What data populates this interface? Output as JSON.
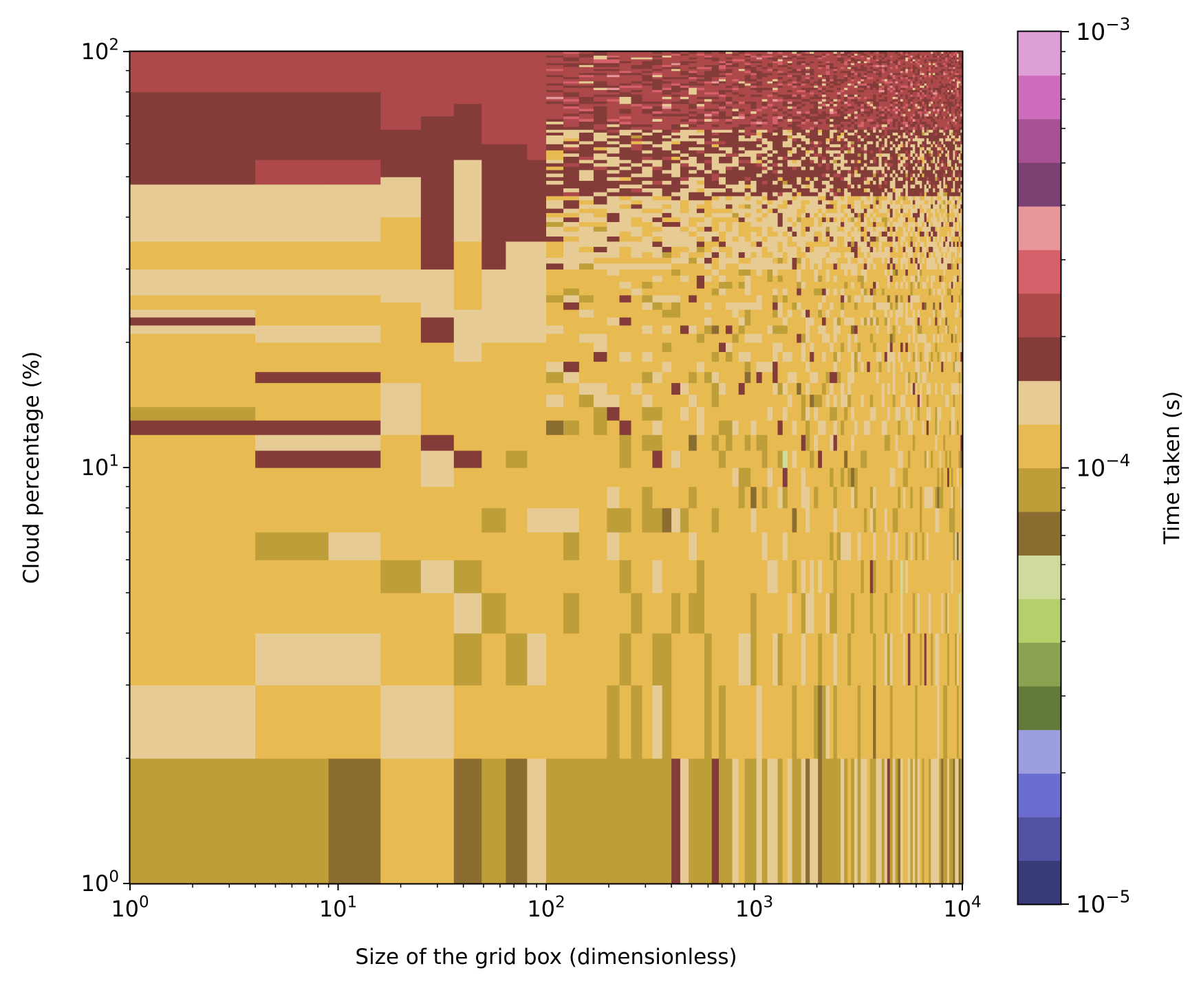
{
  "chart_data": {
    "type": "heatmap",
    "title": "",
    "xlabel": "Size of the grid box (dimensionless)",
    "ylabel": "Cloud percentage (%)",
    "x_scale": "log",
    "y_scale": "log",
    "xlim": [
      1,
      10000
    ],
    "ylim": [
      1,
      100
    ],
    "x_ticks": [
      {
        "value": 1,
        "base": "10",
        "exp": "0"
      },
      {
        "value": 10,
        "base": "10",
        "exp": "1"
      },
      {
        "value": 100,
        "base": "10",
        "exp": "2"
      },
      {
        "value": 1000,
        "base": "10",
        "exp": "3"
      },
      {
        "value": 10000,
        "base": "10",
        "exp": "4"
      }
    ],
    "y_ticks": [
      {
        "value": 1,
        "base": "10",
        "exp": "0"
      },
      {
        "value": 10,
        "base": "10",
        "exp": "1"
      },
      {
        "value": 100,
        "base": "10",
        "exp": "2"
      }
    ],
    "colorbar": {
      "label": "Time taken (s)",
      "scale": "log",
      "range": [
        1e-05,
        0.001
      ],
      "ticks": [
        {
          "value": 1e-05,
          "base": "10",
          "exp": "−5"
        },
        {
          "value": 0.0001,
          "base": "10",
          "exp": "−4"
        },
        {
          "value": 0.001,
          "base": "10",
          "exp": "−3"
        }
      ],
      "colors": [
        "#393b79",
        "#5254a3",
        "#6b6ecf",
        "#9c9ede",
        "#637939",
        "#8ca252",
        "#b5cf6b",
        "#cedb9c",
        "#8c6d31",
        "#bd9e39",
        "#e7ba52",
        "#e7cb94",
        "#843c39",
        "#ad494a",
        "#d6616b",
        "#e7969c",
        "#7b4173",
        "#a55194",
        "#ce6dbd",
        "#de9ed6"
      ]
    },
    "x_edges": [
      1,
      4,
      9,
      16,
      25,
      36,
      49,
      64,
      81,
      100,
      121,
      144,
      169,
      196,
      225,
      256,
      289,
      324,
      361,
      400,
      441,
      484,
      529,
      576,
      625,
      676,
      729,
      784,
      841,
      900,
      961,
      1024,
      1089,
      1156,
      1225,
      1296,
      1369,
      1444,
      1521,
      1600,
      1681,
      1764,
      1849,
      1936,
      2025,
      2116,
      2209,
      2304,
      2401,
      2500,
      2601,
      2704,
      2809,
      2916,
      3025,
      3136,
      3249,
      3364,
      3481,
      3600,
      3721,
      3844,
      3969,
      4096,
      4225,
      4356,
      4489,
      4624,
      4761,
      4900,
      5041,
      5184,
      5329,
      5476,
      5625,
      5776,
      5929,
      6084,
      6241,
      6400,
      6561,
      6724,
      6889,
      7056,
      7225,
      7396,
      7569,
      7744,
      7921,
      8100,
      8281,
      8464,
      8649,
      8836,
      9025,
      9216,
      9409,
      9604,
      9801,
      10000
    ],
    "y_edges": [
      1,
      2,
      3,
      4,
      5,
      6,
      7,
      8,
      9,
      10,
      11,
      12,
      13,
      14,
      15,
      16,
      17,
      18,
      19,
      20,
      21,
      22,
      23,
      24,
      25,
      26,
      27,
      28,
      29,
      30,
      31,
      32,
      33,
      34,
      35,
      36,
      37,
      38,
      39,
      40,
      41,
      42,
      43,
      44,
      45,
      46,
      47,
      48,
      49,
      50,
      51,
      52,
      53,
      54,
      55,
      56,
      57,
      58,
      59,
      60,
      61,
      62,
      63,
      64,
      65,
      66,
      67,
      68,
      69,
      70,
      71,
      72,
      73,
      74,
      75,
      76,
      77,
      78,
      79,
      80,
      81,
      82,
      83,
      84,
      85,
      86,
      87,
      88,
      89,
      90,
      91,
      92,
      93,
      94,
      95,
      96,
      97,
      98,
      99,
      100
    ],
    "col_groups": [
      {
        "x_from": 1,
        "x_to": 4,
        "bands": [
          [
            1,
            2,
            9
          ],
          [
            2,
            3,
            11
          ],
          [
            3,
            12,
            10
          ],
          [
            12,
            13,
            12
          ],
          [
            13,
            14,
            9
          ],
          [
            14,
            16,
            10
          ],
          [
            16,
            21,
            10
          ],
          [
            21,
            22,
            11
          ],
          [
            22,
            23,
            12
          ],
          [
            23,
            24,
            11
          ],
          [
            24,
            26,
            10
          ],
          [
            26,
            30,
            11
          ],
          [
            30,
            35,
            10
          ],
          [
            35,
            48,
            11
          ],
          [
            48,
            80,
            12
          ],
          [
            80,
            100,
            13
          ]
        ]
      },
      {
        "x_from": 4,
        "x_to": 9,
        "bands": [
          [
            1,
            2,
            9
          ],
          [
            2,
            3,
            10
          ],
          [
            3,
            4,
            11
          ],
          [
            4,
            6,
            10
          ],
          [
            6,
            7,
            9
          ],
          [
            7,
            10,
            10
          ],
          [
            10,
            11,
            12
          ],
          [
            11,
            12,
            11
          ],
          [
            12,
            13,
            12
          ],
          [
            13,
            16,
            10
          ],
          [
            16,
            17,
            12
          ],
          [
            17,
            20,
            10
          ],
          [
            20,
            22,
            11
          ],
          [
            22,
            26,
            10
          ],
          [
            26,
            30,
            11
          ],
          [
            30,
            35,
            10
          ],
          [
            35,
            48,
            11
          ],
          [
            48,
            55,
            13
          ],
          [
            55,
            65,
            12
          ],
          [
            65,
            80,
            12
          ],
          [
            80,
            100,
            13
          ]
        ]
      },
      {
        "x_from": 9,
        "x_to": 16,
        "bands": [
          [
            1,
            2,
            8
          ],
          [
            2,
            3,
            10
          ],
          [
            3,
            4,
            11
          ],
          [
            4,
            6,
            10
          ],
          [
            6,
            7,
            11
          ],
          [
            7,
            10,
            10
          ],
          [
            10,
            11,
            12
          ],
          [
            11,
            12,
            11
          ],
          [
            12,
            13,
            12
          ],
          [
            13,
            16,
            10
          ],
          [
            16,
            17,
            12
          ],
          [
            17,
            20,
            10
          ],
          [
            20,
            22,
            11
          ],
          [
            22,
            26,
            10
          ],
          [
            26,
            30,
            11
          ],
          [
            30,
            35,
            10
          ],
          [
            35,
            48,
            11
          ],
          [
            48,
            55,
            13
          ],
          [
            55,
            65,
            12
          ],
          [
            65,
            80,
            12
          ],
          [
            80,
            100,
            13
          ]
        ]
      },
      {
        "x_from": 16,
        "x_to": 25,
        "bands": [
          [
            1,
            2,
            10
          ],
          [
            2,
            3,
            11
          ],
          [
            3,
            5,
            10
          ],
          [
            5,
            6,
            9
          ],
          [
            6,
            12,
            10
          ],
          [
            12,
            16,
            11
          ],
          [
            16,
            25,
            10
          ],
          [
            25,
            30,
            11
          ],
          [
            30,
            40,
            10
          ],
          [
            40,
            50,
            11
          ],
          [
            50,
            65,
            12
          ],
          [
            65,
            100,
            13
          ]
        ]
      },
      {
        "x_from": 25,
        "x_to": 36,
        "bands": [
          [
            1,
            2,
            10
          ],
          [
            2,
            3,
            11
          ],
          [
            3,
            5,
            10
          ],
          [
            5,
            6,
            11
          ],
          [
            6,
            9,
            10
          ],
          [
            9,
            11,
            11
          ],
          [
            11,
            12,
            12
          ],
          [
            12,
            20,
            10
          ],
          [
            20,
            23,
            12
          ],
          [
            23,
            30,
            11
          ],
          [
            30,
            45,
            12
          ],
          [
            45,
            70,
            12
          ],
          [
            70,
            100,
            13
          ]
        ]
      },
      {
        "x_from": 36,
        "x_to": 49,
        "bands": [
          [
            1,
            2,
            8
          ],
          [
            2,
            3,
            10
          ],
          [
            3,
            4,
            9
          ],
          [
            4,
            5,
            11
          ],
          [
            5,
            6,
            9
          ],
          [
            6,
            10,
            10
          ],
          [
            10,
            11,
            12
          ],
          [
            11,
            18,
            10
          ],
          [
            18,
            24,
            11
          ],
          [
            24,
            35,
            10
          ],
          [
            35,
            55,
            11
          ],
          [
            55,
            75,
            12
          ],
          [
            75,
            100,
            13
          ]
        ]
      },
      {
        "x_from": 49,
        "x_to": 64,
        "bands": [
          [
            1,
            2,
            9
          ],
          [
            2,
            3,
            10
          ],
          [
            3,
            4,
            10
          ],
          [
            4,
            5,
            9
          ],
          [
            5,
            7,
            10
          ],
          [
            7,
            8,
            9
          ],
          [
            8,
            20,
            10
          ],
          [
            20,
            30,
            11
          ],
          [
            30,
            45,
            12
          ],
          [
            45,
            60,
            12
          ],
          [
            60,
            100,
            13
          ]
        ]
      },
      {
        "x_from": 64,
        "x_to": 81,
        "bands": [
          [
            1,
            2,
            8
          ],
          [
            2,
            3,
            10
          ],
          [
            3,
            4,
            9
          ],
          [
            4,
            10,
            10
          ],
          [
            10,
            11,
            9
          ],
          [
            11,
            20,
            10
          ],
          [
            20,
            35,
            11
          ],
          [
            35,
            60,
            12
          ],
          [
            60,
            100,
            13
          ]
        ]
      },
      {
        "x_from": 81,
        "x_to": 100,
        "bands": [
          [
            1,
            2,
            11
          ],
          [
            2,
            3,
            10
          ],
          [
            3,
            4,
            11
          ],
          [
            4,
            7,
            10
          ],
          [
            7,
            8,
            11
          ],
          [
            8,
            20,
            10
          ],
          [
            20,
            35,
            11
          ],
          [
            35,
            55,
            12
          ],
          [
            55,
            100,
            13
          ]
        ]
      }
    ]
  }
}
